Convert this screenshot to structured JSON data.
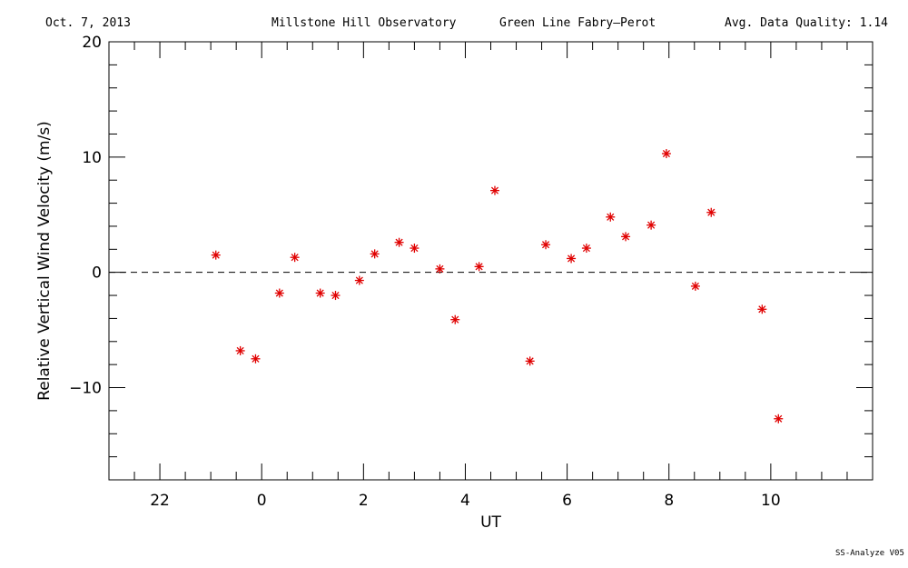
{
  "header": {
    "date": "Oct. 7, 2013",
    "observatory": "Millstone Hill Observatory",
    "instrument": "Green Line Fabry—Perot",
    "avg_quality_label": "Avg. Data Quality: 1.14"
  },
  "footer": {
    "version": "SS-Analyze V05"
  },
  "chart_data": {
    "type": "scatter",
    "title": "",
    "xlabel": "UT",
    "ylabel": "Relative Vertical Wind Velocity (m/s)",
    "xlim": [
      -3,
      12
    ],
    "ylim": [
      -18,
      20
    ],
    "x_major_ticks": [
      -2,
      0,
      2,
      4,
      6,
      8,
      10
    ],
    "x_tick_labels": [
      "22",
      "0",
      "2",
      "4",
      "6",
      "8",
      "10"
    ],
    "x_minor_step": 0.5,
    "y_major_ticks": [
      -10,
      0,
      10,
      20
    ],
    "y_tick_labels": [
      "−10",
      "0",
      "10",
      "20"
    ],
    "y_minor_step": 2,
    "reference_line": {
      "y": 0,
      "style": "dashed"
    },
    "marker": "asterisk",
    "marker_color": "#e00000",
    "grid": false,
    "legend": "none",
    "series": [
      {
        "points": [
          [
            -0.9,
            1.5
          ],
          [
            -0.42,
            -6.8
          ],
          [
            -0.12,
            -7.5
          ],
          [
            0.35,
            -1.8
          ],
          [
            0.65,
            1.3
          ],
          [
            1.15,
            -1.8
          ],
          [
            1.45,
            -2.0
          ],
          [
            1.92,
            -0.7
          ],
          [
            2.22,
            1.6
          ],
          [
            2.7,
            2.6
          ],
          [
            3.0,
            2.1
          ],
          [
            3.5,
            0.3
          ],
          [
            3.8,
            -4.1
          ],
          [
            4.27,
            0.5
          ],
          [
            4.58,
            7.1
          ],
          [
            5.27,
            -7.7
          ],
          [
            5.58,
            2.4
          ],
          [
            6.08,
            1.2
          ],
          [
            6.38,
            2.1
          ],
          [
            6.85,
            4.8
          ],
          [
            7.15,
            3.1
          ],
          [
            7.65,
            4.1
          ],
          [
            7.95,
            10.3
          ],
          [
            8.52,
            -1.2
          ],
          [
            8.83,
            5.2
          ],
          [
            9.83,
            -3.2
          ],
          [
            10.15,
            -12.7
          ]
        ]
      }
    ]
  }
}
